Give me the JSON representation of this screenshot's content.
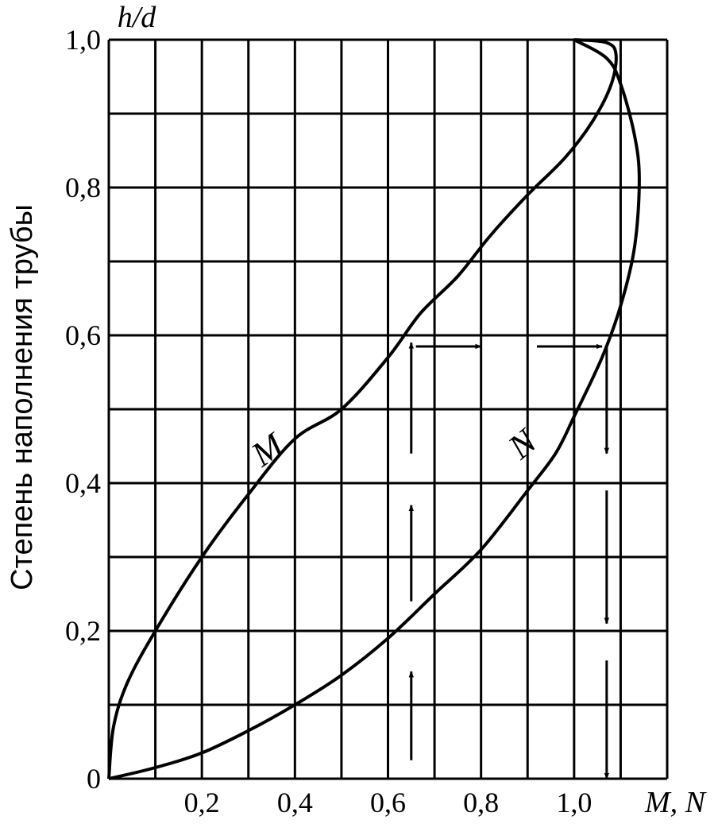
{
  "chart_data": {
    "type": "line",
    "xlabel": "M, N",
    "ylabel": "Степень наполнения трубы",
    "ylabel_top": "h/d",
    "xlim": [
      0,
      1.2
    ],
    "ylim": [
      0,
      1.0
    ],
    "x_ticks": [
      {
        "value": 0.2,
        "label": "0,2"
      },
      {
        "value": 0.4,
        "label": "0,4"
      },
      {
        "value": 0.6,
        "label": "0,6"
      },
      {
        "value": 0.8,
        "label": "0,8"
      },
      {
        "value": 1.0,
        "label": "1,0"
      }
    ],
    "y_ticks": [
      {
        "value": 0.0,
        "label": "0"
      },
      {
        "value": 0.2,
        "label": "0,2"
      },
      {
        "value": 0.4,
        "label": "0,4"
      },
      {
        "value": 0.6,
        "label": "0,6"
      },
      {
        "value": 0.8,
        "label": "0,8"
      },
      {
        "value": 1.0,
        "label": "1,0"
      }
    ],
    "x_grid_step": 0.1,
    "y_grid_step": 0.1,
    "grid": true,
    "series": [
      {
        "name": "M",
        "points": [
          [
            0.0,
            0.0
          ],
          [
            0.01,
            0.07
          ],
          [
            0.04,
            0.13
          ],
          [
            0.1,
            0.2
          ],
          [
            0.2,
            0.3
          ],
          [
            0.3,
            0.385
          ],
          [
            0.4,
            0.46
          ],
          [
            0.5,
            0.5
          ],
          [
            0.6,
            0.57
          ],
          [
            0.67,
            0.63
          ],
          [
            0.75,
            0.68
          ],
          [
            0.82,
            0.735
          ],
          [
            0.9,
            0.79
          ],
          [
            0.98,
            0.84
          ],
          [
            1.04,
            0.89
          ],
          [
            1.08,
            0.94
          ],
          [
            1.09,
            0.98
          ],
          [
            1.07,
            0.996
          ],
          [
            1.0,
            1.0
          ]
        ]
      },
      {
        "name": "N",
        "points": [
          [
            0.0,
            0.0
          ],
          [
            0.1,
            0.015
          ],
          [
            0.2,
            0.035
          ],
          [
            0.3,
            0.065
          ],
          [
            0.4,
            0.1
          ],
          [
            0.5,
            0.14
          ],
          [
            0.6,
            0.19
          ],
          [
            0.7,
            0.25
          ],
          [
            0.8,
            0.31
          ],
          [
            0.9,
            0.39
          ],
          [
            0.96,
            0.44
          ],
          [
            1.0,
            0.49
          ],
          [
            1.06,
            0.57
          ],
          [
            1.1,
            0.64
          ],
          [
            1.13,
            0.72
          ],
          [
            1.14,
            0.81
          ],
          [
            1.13,
            0.87
          ],
          [
            1.1,
            0.94
          ],
          [
            1.07,
            0.975
          ],
          [
            1.0,
            1.0
          ]
        ]
      }
    ],
    "curve_labels": [
      {
        "text": "M",
        "series": "M"
      },
      {
        "text": "N",
        "series": "N"
      }
    ],
    "annotation_arrows": [
      {
        "from": [
          0.65,
          0.44
        ],
        "to": [
          0.65,
          0.59
        ]
      },
      {
        "from": [
          0.65,
          0.24
        ],
        "to": [
          0.65,
          0.37
        ]
      },
      {
        "from": [
          0.65,
          0.025
        ],
        "to": [
          0.65,
          0.145
        ]
      },
      {
        "from": [
          0.66,
          0.585
        ],
        "to": [
          0.8,
          0.585
        ]
      },
      {
        "from": [
          0.92,
          0.585
        ],
        "to": [
          1.06,
          0.585
        ]
      },
      {
        "from": [
          1.07,
          0.585
        ],
        "to": [
          1.07,
          0.44
        ]
      },
      {
        "from": [
          1.07,
          0.39
        ],
        "to": [
          1.07,
          0.21
        ]
      },
      {
        "from": [
          1.07,
          0.16
        ],
        "to": [
          1.07,
          0.0
        ]
      }
    ]
  }
}
